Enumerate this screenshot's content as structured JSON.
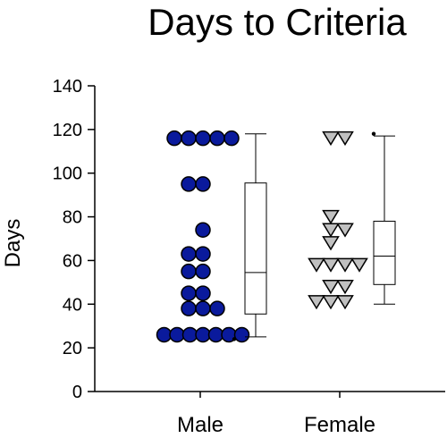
{
  "chart_data": {
    "type": "scatter",
    "title": "Days to Criteria",
    "ylabel": "Days",
    "xlabel": "",
    "ylim": [
      0,
      140
    ],
    "yticks": [
      0,
      20,
      40,
      60,
      80,
      100,
      120,
      140
    ],
    "categories": [
      "Male",
      "Female"
    ],
    "grid": false,
    "series": [
      {
        "category": "Male",
        "marker": "circle",
        "color": "#0a1a9c",
        "edge_color": "#000000",
        "points": [
          116,
          116,
          116,
          116,
          116,
          95,
          95,
          74,
          63,
          63,
          55,
          55,
          45,
          45,
          38,
          38,
          38,
          26,
          26,
          26,
          26,
          26,
          26,
          26
        ],
        "box": {
          "whisker_low": 25,
          "q1": 35.5,
          "median": 54.5,
          "q3": 95.5,
          "whisker_high": 118,
          "outliers": [
            24
          ]
        }
      },
      {
        "category": "Female",
        "marker": "triangle-down",
        "color": "#c0c0c0",
        "edge_color": "#000000",
        "points": [
          116,
          116,
          80,
          74,
          74,
          68,
          58,
          58,
          58,
          58,
          48,
          48,
          41,
          41,
          41
        ],
        "box": {
          "whisker_low": 40,
          "q1": 49,
          "median": 62,
          "q3": 78,
          "whisker_high": 117,
          "outliers": [
            118
          ]
        }
      }
    ]
  }
}
